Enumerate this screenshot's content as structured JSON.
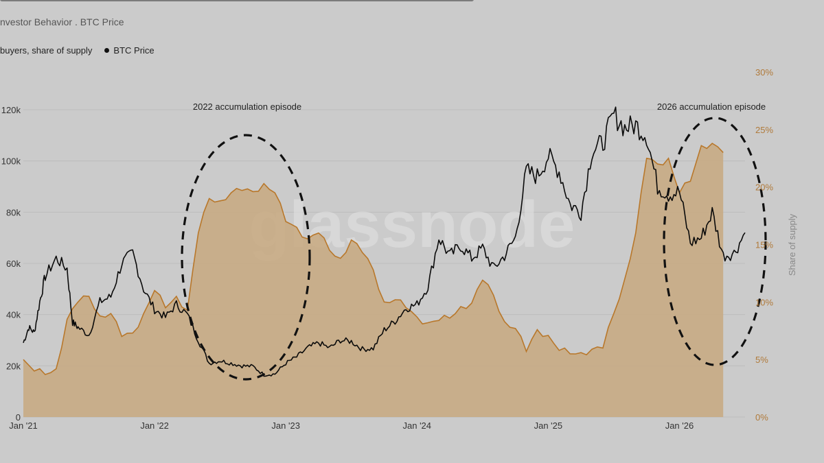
{
  "header": {
    "subtitle": "nvestor Behavior . BTC Price"
  },
  "legend": {
    "series_1": "buyers, share of supply",
    "series_2": "BTC Price"
  },
  "colors": {
    "background": "#cbcbcb",
    "area_fill": "#c8a980",
    "area_stroke": "#b8772a",
    "price_line": "#0a0a0a",
    "right_axis": "#b07a3a",
    "grid": "#bcbcbc"
  },
  "watermark": "glassnode",
  "chart_data": {
    "type": "line",
    "x_axis": {
      "ticks": [
        "Jan '21",
        "Jan '22",
        "Jan '23",
        "Jan '24",
        "Jan '25",
        "Jan '26"
      ],
      "range": [
        "2021-01",
        "2026-07"
      ]
    },
    "y_left": {
      "ticks": [
        "0",
        "20k",
        "40k",
        "60k",
        "80k",
        "100k",
        "120k"
      ],
      "range": [
        0,
        120000
      ]
    },
    "y_right": {
      "label": "Share of supply",
      "ticks": [
        "0%",
        "5%",
        "10%",
        "15%",
        "20%",
        "25%",
        "30%"
      ],
      "range": [
        0,
        30
      ]
    },
    "series": [
      {
        "name": "buyers, share of supply",
        "type": "area",
        "axis": "right",
        "points": [
          [
            "2021-01",
            5.0
          ],
          [
            "2021-02",
            4.0
          ],
          [
            "2021-03",
            3.7
          ],
          [
            "2021-04",
            4.2
          ],
          [
            "2021-05",
            8.5
          ],
          [
            "2021-06",
            10.0
          ],
          [
            "2021-07",
            10.5
          ],
          [
            "2021-08",
            8.8
          ],
          [
            "2021-09",
            9.0
          ],
          [
            "2021-10",
            7.0
          ],
          [
            "2021-11",
            7.3
          ],
          [
            "2021-12",
            9.0
          ],
          [
            "2022-01",
            11.0
          ],
          [
            "2022-02",
            9.5
          ],
          [
            "2022-03",
            10.5
          ],
          [
            "2022-04",
            9.3
          ],
          [
            "2022-05",
            16.0
          ],
          [
            "2022-06",
            19.0
          ],
          [
            "2022-07",
            18.8
          ],
          [
            "2022-08",
            19.5
          ],
          [
            "2022-09",
            19.7
          ],
          [
            "2022-10",
            19.6
          ],
          [
            "2022-11",
            20.3
          ],
          [
            "2022-12",
            19.5
          ],
          [
            "2023-01",
            17.0
          ],
          [
            "2023-02",
            16.5
          ],
          [
            "2023-03",
            15.5
          ],
          [
            "2023-04",
            16.0
          ],
          [
            "2023-05",
            14.5
          ],
          [
            "2023-06",
            13.8
          ],
          [
            "2023-07",
            15.4
          ],
          [
            "2023-08",
            14.3
          ],
          [
            "2023-09",
            12.8
          ],
          [
            "2023-10",
            10.0
          ],
          [
            "2023-11",
            10.2
          ],
          [
            "2023-12",
            9.5
          ],
          [
            "2024-01",
            8.7
          ],
          [
            "2024-02",
            8.2
          ],
          [
            "2024-03",
            8.4
          ],
          [
            "2024-04",
            8.6
          ],
          [
            "2024-05",
            9.6
          ],
          [
            "2024-06",
            9.9
          ],
          [
            "2024-07",
            11.9
          ],
          [
            "2024-08",
            10.6
          ],
          [
            "2024-09",
            8.3
          ],
          [
            "2024-10",
            7.7
          ],
          [
            "2024-11",
            5.7
          ],
          [
            "2024-12",
            7.6
          ],
          [
            "2025-01",
            7.1
          ],
          [
            "2025-02",
            5.8
          ],
          [
            "2025-03",
            5.5
          ],
          [
            "2025-04",
            5.6
          ],
          [
            "2025-05",
            5.9
          ],
          [
            "2025-06",
            6.0
          ],
          [
            "2025-07",
            9.0
          ],
          [
            "2025-08",
            12.0
          ],
          [
            "2025-09",
            16.0
          ],
          [
            "2025-10",
            22.5
          ],
          [
            "2025-11",
            22.0
          ],
          [
            "2025-12",
            22.5
          ],
          [
            "2026-01",
            19.5
          ],
          [
            "2026-02",
            20.5
          ],
          [
            "2026-03",
            23.6
          ],
          [
            "2026-04",
            23.8
          ],
          [
            "2026-05",
            23.0
          ]
        ]
      },
      {
        "name": "BTC Price",
        "type": "line",
        "axis": "left",
        "points": [
          [
            "2021-01",
            29000
          ],
          [
            "2021-01",
            35000
          ],
          [
            "2021-02",
            33000
          ],
          [
            "2021-02",
            45000
          ],
          [
            "2021-03",
            55000
          ],
          [
            "2021-04",
            62000
          ],
          [
            "2021-05",
            58000
          ],
          [
            "2021-05",
            37000
          ],
          [
            "2021-06",
            35000
          ],
          [
            "2021-07",
            32000
          ],
          [
            "2021-08",
            45000
          ],
          [
            "2021-09",
            47000
          ],
          [
            "2021-10",
            60000
          ],
          [
            "2021-11",
            64000
          ],
          [
            "2021-12",
            50000
          ],
          [
            "2022-01",
            42000
          ],
          [
            "2022-02",
            39000
          ],
          [
            "2022-03",
            44000
          ],
          [
            "2022-04",
            40000
          ],
          [
            "2022-05",
            30000
          ],
          [
            "2022-06",
            21000
          ],
          [
            "2022-07",
            22000
          ],
          [
            "2022-08",
            21000
          ],
          [
            "2022-09",
            20000
          ],
          [
            "2022-10",
            19800
          ],
          [
            "2022-11",
            16500
          ],
          [
            "2022-12",
            16800
          ],
          [
            "2023-01",
            21000
          ],
          [
            "2023-02",
            23500
          ],
          [
            "2023-03",
            27000
          ],
          [
            "2023-04",
            29000
          ],
          [
            "2023-05",
            27000
          ],
          [
            "2023-06",
            30000
          ],
          [
            "2023-07",
            29500
          ],
          [
            "2023-08",
            26500
          ],
          [
            "2023-09",
            26800
          ],
          [
            "2023-10",
            34000
          ],
          [
            "2023-11",
            37500
          ],
          [
            "2023-12",
            42500
          ],
          [
            "2024-01",
            44000
          ],
          [
            "2024-02",
            51000
          ],
          [
            "2024-03",
            70000
          ],
          [
            "2024-04",
            63000
          ],
          [
            "2024-05",
            67000
          ],
          [
            "2024-06",
            62000
          ],
          [
            "2024-07",
            66000
          ],
          [
            "2024-08",
            58000
          ],
          [
            "2024-09",
            63000
          ],
          [
            "2024-10",
            70000
          ],
          [
            "2024-11",
            96000
          ],
          [
            "2024-12",
            94000
          ],
          [
            "2025-01",
            102000
          ],
          [
            "2025-02",
            96000
          ],
          [
            "2025-03",
            83000
          ],
          [
            "2025-04",
            80000
          ],
          [
            "2025-05",
            104000
          ],
          [
            "2025-06",
            107000
          ],
          [
            "2025-07",
            118000
          ],
          [
            "2025-08",
            113000
          ],
          [
            "2025-09",
            114000
          ],
          [
            "2025-10",
            110000
          ],
          [
            "2025-11",
            90000
          ],
          [
            "2025-12",
            87000
          ],
          [
            "2026-01",
            88000
          ],
          [
            "2026-02",
            68000
          ],
          [
            "2026-03",
            70000
          ],
          [
            "2026-04",
            80000
          ],
          [
            "2026-05",
            63000
          ],
          [
            "2026-06",
            64000
          ],
          [
            "2026-07",
            72000
          ]
        ]
      }
    ],
    "annotations": [
      {
        "text": "2022 accumulation episode",
        "around": [
          "2022-05",
          "2023-02"
        ]
      },
      {
        "text": "2026 accumulation episode",
        "around": [
          "2025-10",
          "2026-07"
        ]
      }
    ],
    "grid": true
  }
}
